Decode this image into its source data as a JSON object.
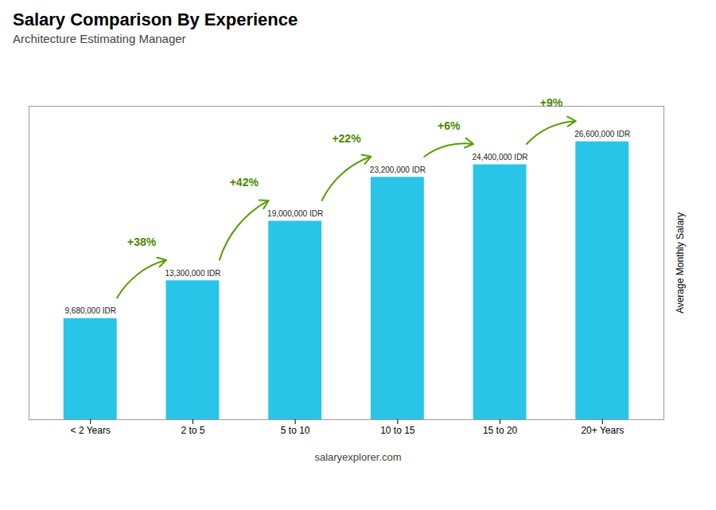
{
  "chart_data": {
    "type": "bar",
    "title": "Salary Comparison By Experience",
    "subtitle": "Architecture Estimating Manager",
    "caption": "salaryexplorer.com",
    "ylabel": "Average Monthly Salary",
    "categories": [
      "< 2 Years",
      "2 to 5",
      "5 to 10",
      "10 to 15",
      "15 to 20",
      "20+ Years"
    ],
    "values": [
      9680000,
      13300000,
      19000000,
      23200000,
      24400000,
      26600000
    ],
    "value_labels": [
      "9,680,000 IDR",
      "13,300,000 IDR",
      "19,000,000 IDR",
      "23,200,000 IDR",
      "24,400,000 IDR",
      "26,600,000 IDR"
    ],
    "data_labels": true,
    "color": "#29c5e8",
    "annotations": [
      "+38%",
      "+42%",
      "+22%",
      "+6%",
      "+9%"
    ],
    "ylim": [
      0,
      30000000
    ],
    "tick_labels": "x",
    "grid": false
  }
}
